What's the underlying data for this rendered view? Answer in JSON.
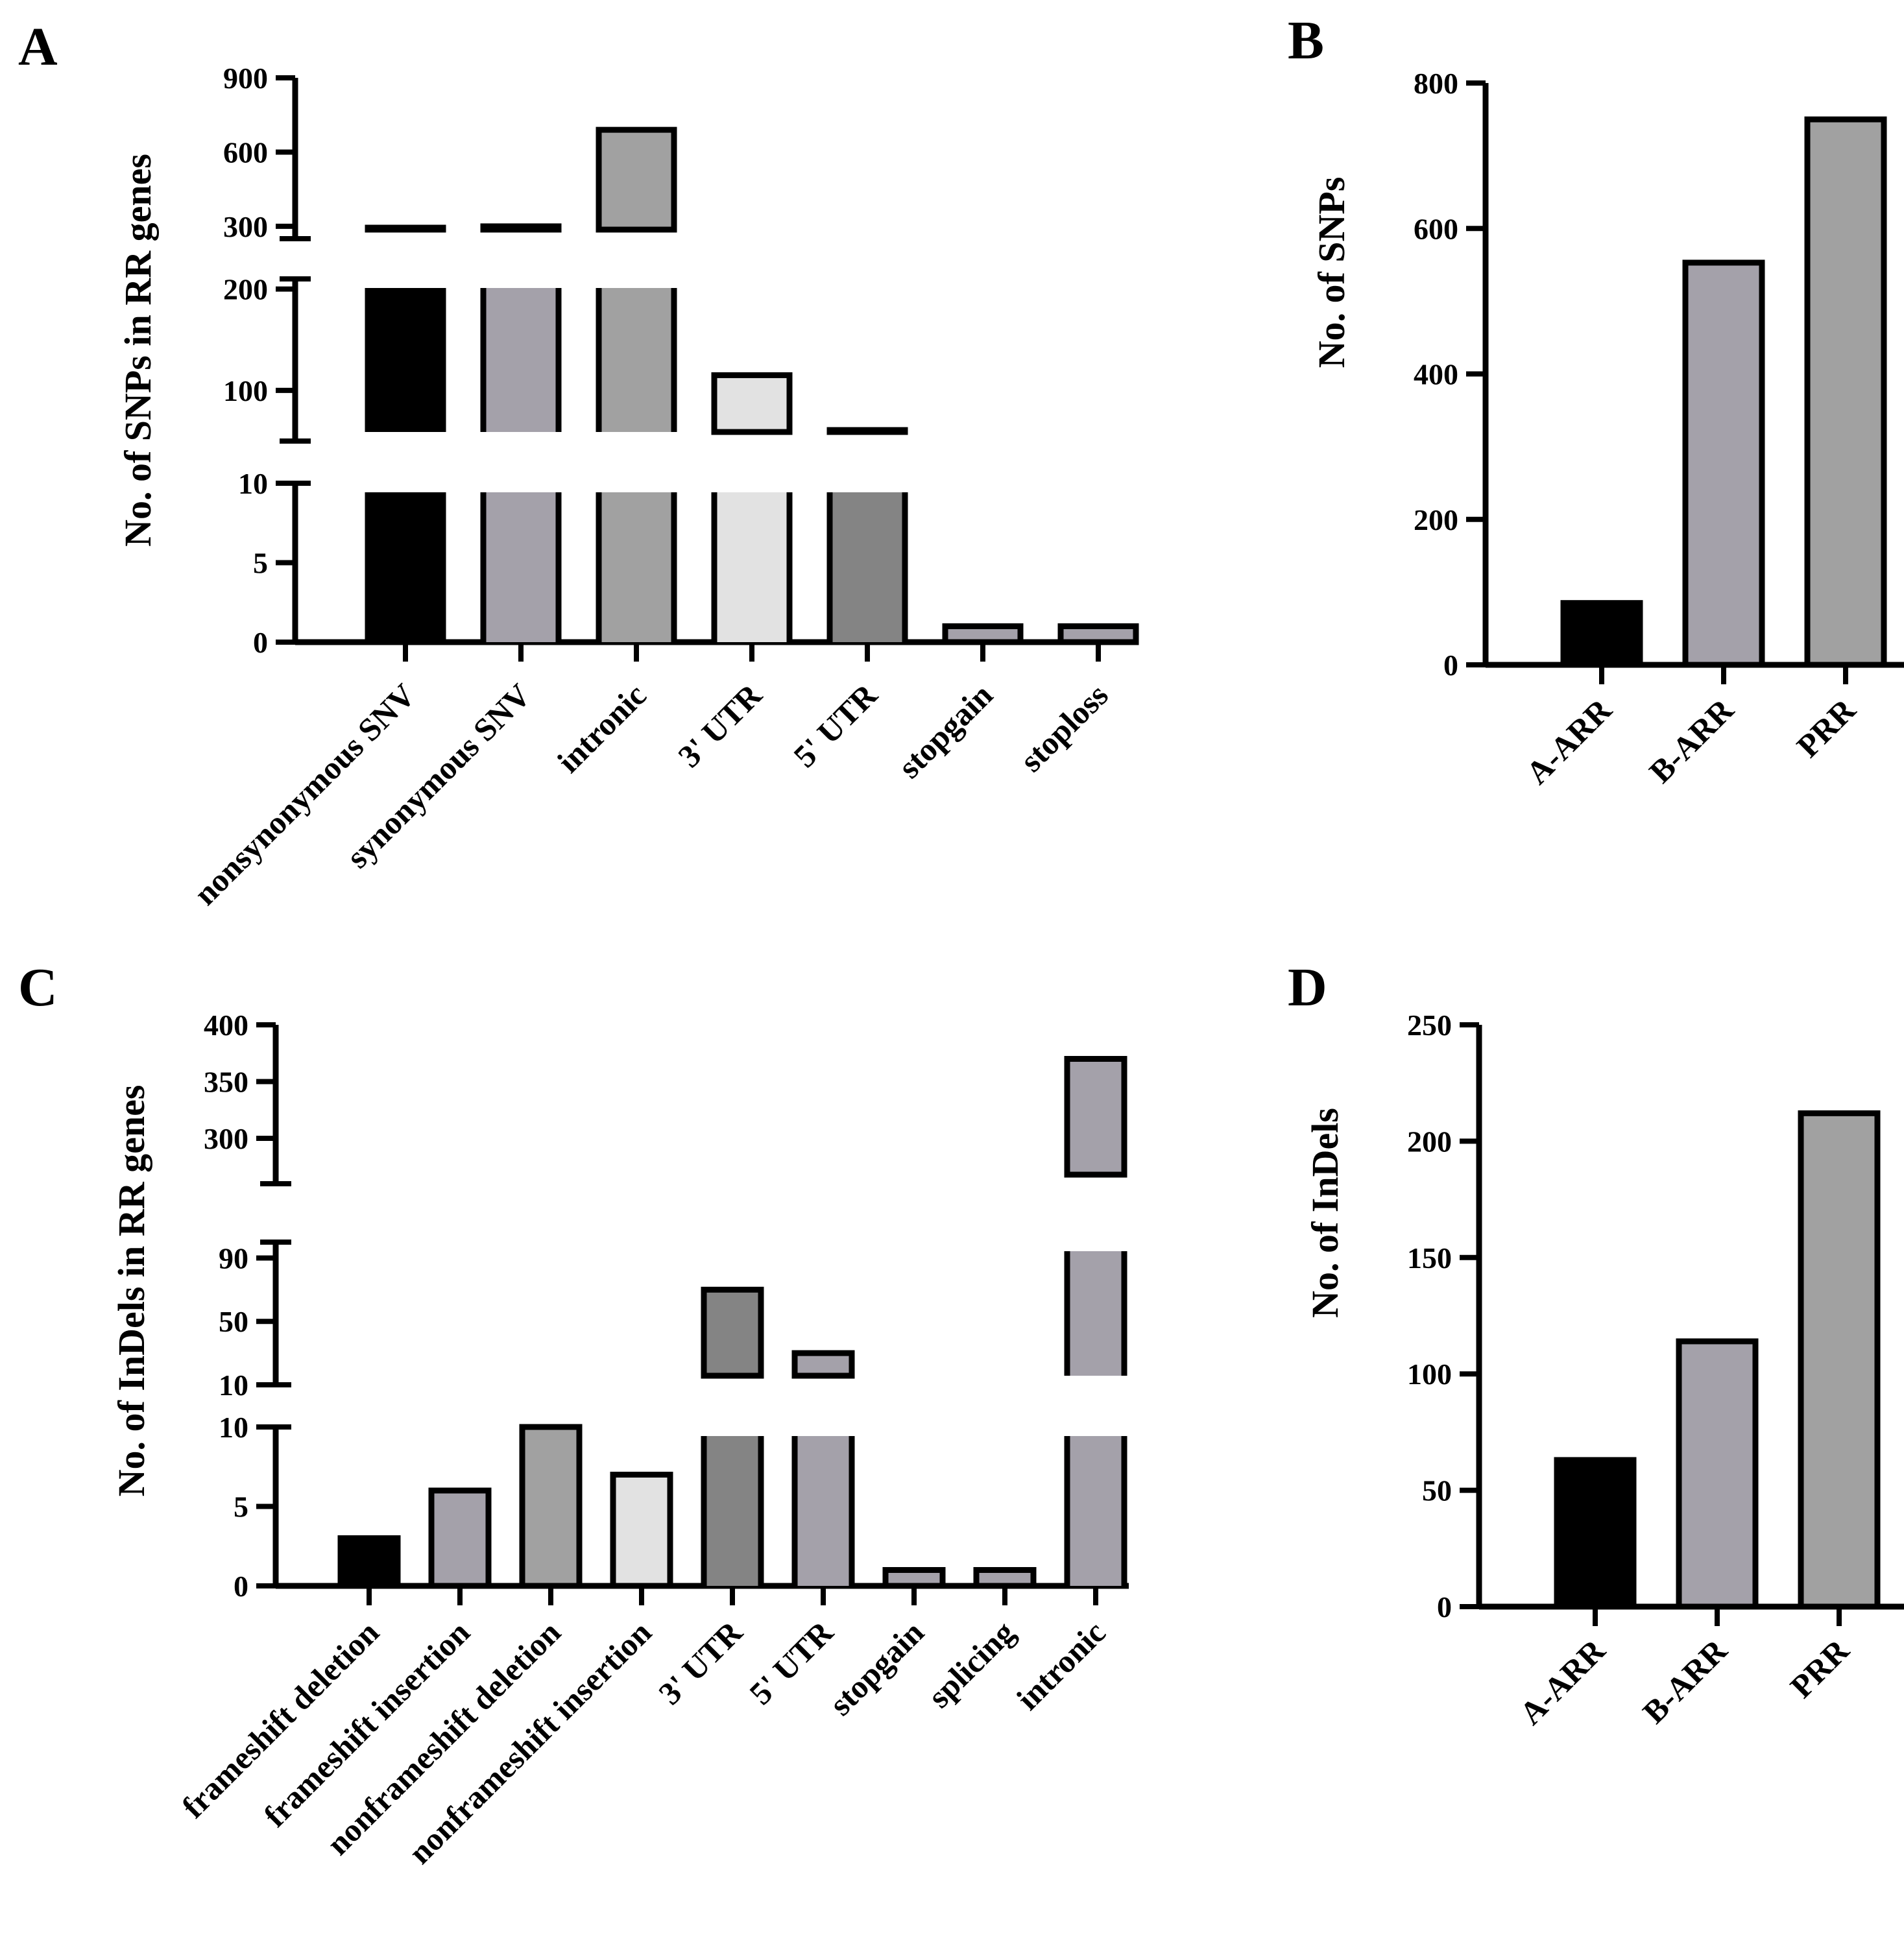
{
  "colors": {
    "black": "#000000",
    "mid_purple": "#a4a1aa",
    "gray": "#a1a1a1",
    "light_gray": "#e2e2e2",
    "dark_gray": "#848484",
    "white": "#ffffff"
  },
  "chart_data": [
    {
      "panel": "A",
      "type": "bar",
      "axis": "broken",
      "ylabel": "No. of  SNPs in RR genes",
      "categories": [
        "nonsynonymous SNV",
        "synonymous SNV",
        "intronic",
        "3' UTR",
        "5' UTR",
        "stopgain",
        "stoploss"
      ],
      "values": [
        260,
        300,
        690,
        115,
        60,
        1,
        1
      ],
      "bar_colors": [
        "black",
        "mid_purple",
        "gray",
        "light_gray",
        "dark_gray",
        "mid_purple",
        "mid_purple"
      ],
      "segments": [
        {
          "range": [
            0,
            10
          ],
          "ticks": [
            "0",
            "5",
            "10"
          ]
        },
        {
          "range": [
            50,
            210
          ],
          "ticks": [
            "100",
            "200"
          ]
        },
        {
          "range": [
            250,
            900
          ],
          "ticks": [
            "300",
            "600",
            "900"
          ]
        }
      ]
    },
    {
      "panel": "B",
      "type": "bar",
      "ylabel": "No. of SNPs",
      "categories": [
        "A-ARR",
        "B-ARR",
        "PRR"
      ],
      "values": [
        85,
        553,
        750
      ],
      "bar_colors": [
        "black",
        "mid_purple",
        "gray"
      ],
      "ylim": [
        0,
        800
      ],
      "ticks": [
        "0",
        "200",
        "400",
        "600",
        "800"
      ]
    },
    {
      "panel": "C",
      "type": "bar",
      "axis": "broken",
      "ylabel": "No. of  InDels in RR genes",
      "categories": [
        "frameshift deletion",
        "frameshift insertion",
        "nonframeshift deletion",
        "nonframeshift insertion",
        "3' UTR",
        "5' UTR",
        "stopgain",
        "splicing",
        "intronic"
      ],
      "values": [
        3,
        6,
        10,
        7,
        70,
        30,
        1,
        1,
        370
      ],
      "bar_colors": [
        "black",
        "mid_purple",
        "gray",
        "light_gray",
        "dark_gray",
        "mid_purple",
        "mid_purple",
        "mid_purple",
        "mid_purple"
      ],
      "segments": [
        {
          "range": [
            0,
            10
          ],
          "ticks": [
            "0",
            "5",
            "10"
          ]
        },
        {
          "range": [
            10,
            100
          ],
          "ticks": [
            "10",
            "50",
            "90"
          ]
        },
        {
          "range": [
            260,
            400
          ],
          "ticks": [
            "300",
            "350",
            "400"
          ]
        }
      ]
    },
    {
      "panel": "D",
      "type": "bar",
      "ylabel": "No. of InDels",
      "categories": [
        "A-ARR",
        "B-ARR",
        "PRR"
      ],
      "values": [
        63,
        114,
        212
      ],
      "bar_colors": [
        "black",
        "mid_purple",
        "gray"
      ],
      "ylim": [
        0,
        250
      ],
      "ticks": [
        "0",
        "50",
        "100",
        "150",
        "200",
        "250"
      ]
    }
  ]
}
